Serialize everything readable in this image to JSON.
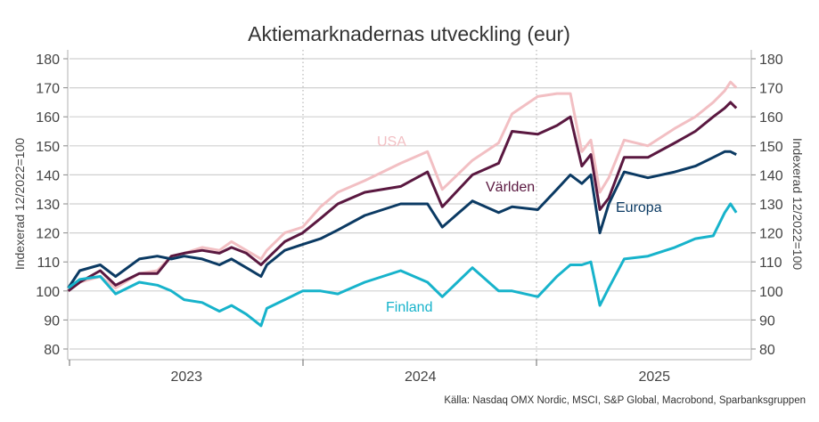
{
  "chart_data": {
    "type": "line",
    "title": "Aktiemarknadernas utveckling (eur)",
    "ylabel_left": "Indexerad 12/2022=100",
    "ylabel_right": "Indexerad 12/2022=100",
    "ylim": [
      80,
      180
    ],
    "yticks": [
      80,
      90,
      100,
      110,
      120,
      130,
      140,
      150,
      160,
      170,
      180
    ],
    "xlim": [
      "2023-01-01",
      "2025-12-31"
    ],
    "xtick_labels": [
      "2023",
      "2024",
      "2025"
    ],
    "grid": "horizontal",
    "source": "Källa: Nasdaq OMX Nordic, MSCI, S&P Global, Macrobond, Sparbanksgruppen",
    "x": [
      "2022-12-30",
      "2023-01-17",
      "2023-02-18",
      "2023-03-14",
      "2023-04-20",
      "2023-05-18",
      "2023-06-09",
      "2023-06-29",
      "2023-07-27",
      "2023-08-23",
      "2023-09-11",
      "2023-10-04",
      "2023-10-27",
      "2023-11-05",
      "2023-12-03",
      "2023-12-31",
      "2024-01-28",
      "2024-02-24",
      "2024-04-06",
      "2024-06-01",
      "2024-07-13",
      "2024-08-05",
      "2024-09-21",
      "2024-11-01",
      "2024-11-22",
      "2025-01-01",
      "2025-01-31",
      "2025-02-21",
      "2025-03-11",
      "2025-03-25",
      "2025-04-08",
      "2025-04-22",
      "2025-05-16",
      "2025-06-22",
      "2025-08-03",
      "2025-09-04",
      "2025-10-02",
      "2025-10-20",
      "2025-10-29",
      "2025-11-07"
    ],
    "series": [
      {
        "name": "USA",
        "color": "#f2bfc3",
        "values": [
          100,
          103,
          105,
          101,
          106,
          107,
          112,
          113,
          115,
          114,
          117,
          114,
          111,
          114,
          120,
          122,
          129,
          134,
          138,
          144,
          148,
          135,
          145,
          151,
          161,
          167,
          168,
          168,
          148,
          152,
          134,
          139,
          152,
          150,
          156,
          160,
          165,
          169,
          172,
          170
        ]
      },
      {
        "name": "Världen",
        "color": "#5a1840",
        "values": [
          100,
          103,
          107,
          102,
          106,
          106,
          112,
          113,
          114,
          113,
          115,
          113,
          109,
          111,
          117,
          120,
          125,
          130,
          134,
          136,
          141,
          129,
          140,
          144,
          155,
          154,
          157,
          160,
          143,
          147,
          128,
          132,
          146,
          146,
          151,
          155,
          160,
          163,
          165,
          163
        ]
      },
      {
        "name": "Europa",
        "color": "#0b3a63",
        "values": [
          101,
          107,
          109,
          105,
          111,
          112,
          111,
          112,
          111,
          109,
          111,
          108,
          105,
          109,
          114,
          116,
          118,
          121,
          126,
          130,
          130,
          122,
          131,
          127,
          129,
          128,
          135,
          140,
          137,
          140,
          120,
          130,
          141,
          139,
          141,
          143,
          146,
          148,
          148,
          147
        ]
      },
      {
        "name": "Finland",
        "color": "#17b3cb",
        "values": [
          101,
          104,
          105,
          99,
          103,
          102,
          100,
          97,
          96,
          93,
          95,
          92,
          88,
          94,
          97,
          100,
          100,
          99,
          103,
          107,
          103,
          98,
          108,
          100,
          100,
          98,
          105,
          109,
          109,
          110,
          95,
          101,
          111,
          112,
          115,
          118,
          119,
          127,
          130,
          127
        ]
      }
    ]
  }
}
